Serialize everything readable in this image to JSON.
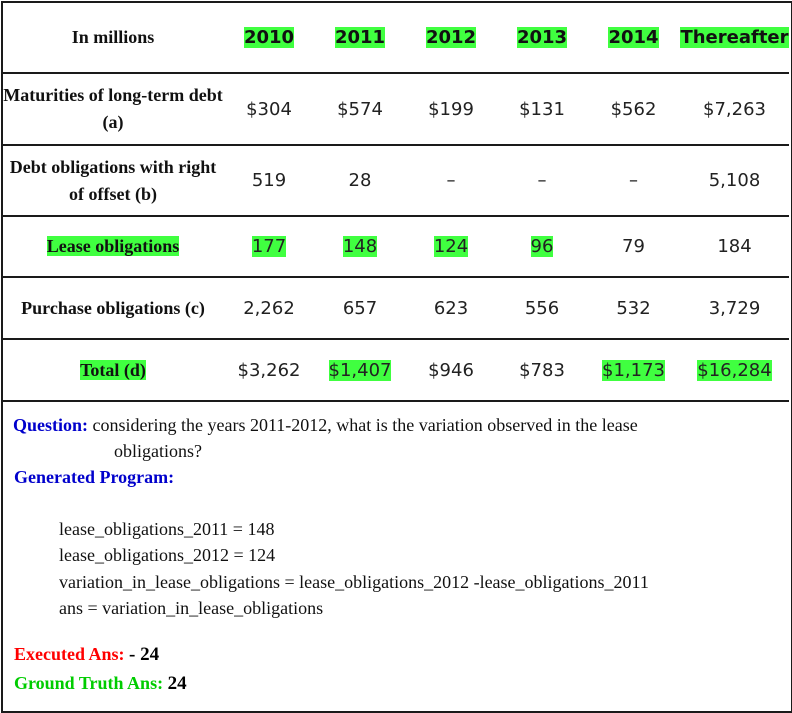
{
  "table": {
    "header": {
      "label": "In millions",
      "years": [
        "2010",
        "2011",
        "2012",
        "2013",
        "2014",
        "Thereafter"
      ]
    },
    "rows": [
      {
        "label": "Maturities of long-term debt (a)",
        "values": [
          "$304",
          "$574",
          "$199",
          "$131",
          "$562",
          "$7,263"
        ]
      },
      {
        "label": "Debt obligations with right of offset (b)",
        "values": [
          "519",
          "28",
          "–",
          "–",
          "–",
          "5,108"
        ]
      },
      {
        "label": "Lease obligations",
        "values": [
          "177",
          "148",
          "124",
          "96",
          "79",
          "184"
        ]
      },
      {
        "label": "Purchase obligations (c)",
        "values": [
          "2,262",
          "657",
          "623",
          "556",
          "532",
          "3,729"
        ]
      },
      {
        "label": "Total (d)",
        "values": [
          "$3,262",
          "$1,407",
          "$946",
          "$783",
          "$1,173",
          "$16,284"
        ]
      }
    ]
  },
  "highlight_color": "#40ff40",
  "qa": {
    "question_label": "Question:",
    "question_text_line1": "considering the years 2011-2012, what is the variation observed in the lease",
    "question_text_line2": "obligations?",
    "program_label": "Generated Program:",
    "program_lines": [
      "lease_obligations_2011 = 148",
      "lease_obligations_2012 = 124",
      "variation_in_lease_obligations = lease_obligations_2012 -lease_obligations_2011",
      "ans = variation_in_lease_obligations"
    ],
    "executed_label": "Executed Ans:",
    "executed_value": "- 24",
    "ground_truth_label": "Ground Truth Ans:",
    "ground_truth_value": "24"
  }
}
